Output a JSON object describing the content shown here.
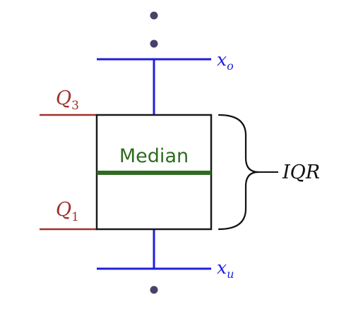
{
  "labels": {
    "q3": {
      "base": "Q",
      "sub": "3"
    },
    "q1": {
      "base": "Q",
      "sub": "1"
    },
    "upper_whisker": {
      "base": "x",
      "sub": "o"
    },
    "lower_whisker": {
      "base": "x",
      "sub": "u"
    },
    "median": "Median",
    "iqr": "IQR"
  },
  "colors": {
    "whisker": "#1f1fe0",
    "quartile": "#a0302c",
    "median": "#2e6b1f",
    "box": "#1a1a1a",
    "outlier": "#4a4068"
  }
}
